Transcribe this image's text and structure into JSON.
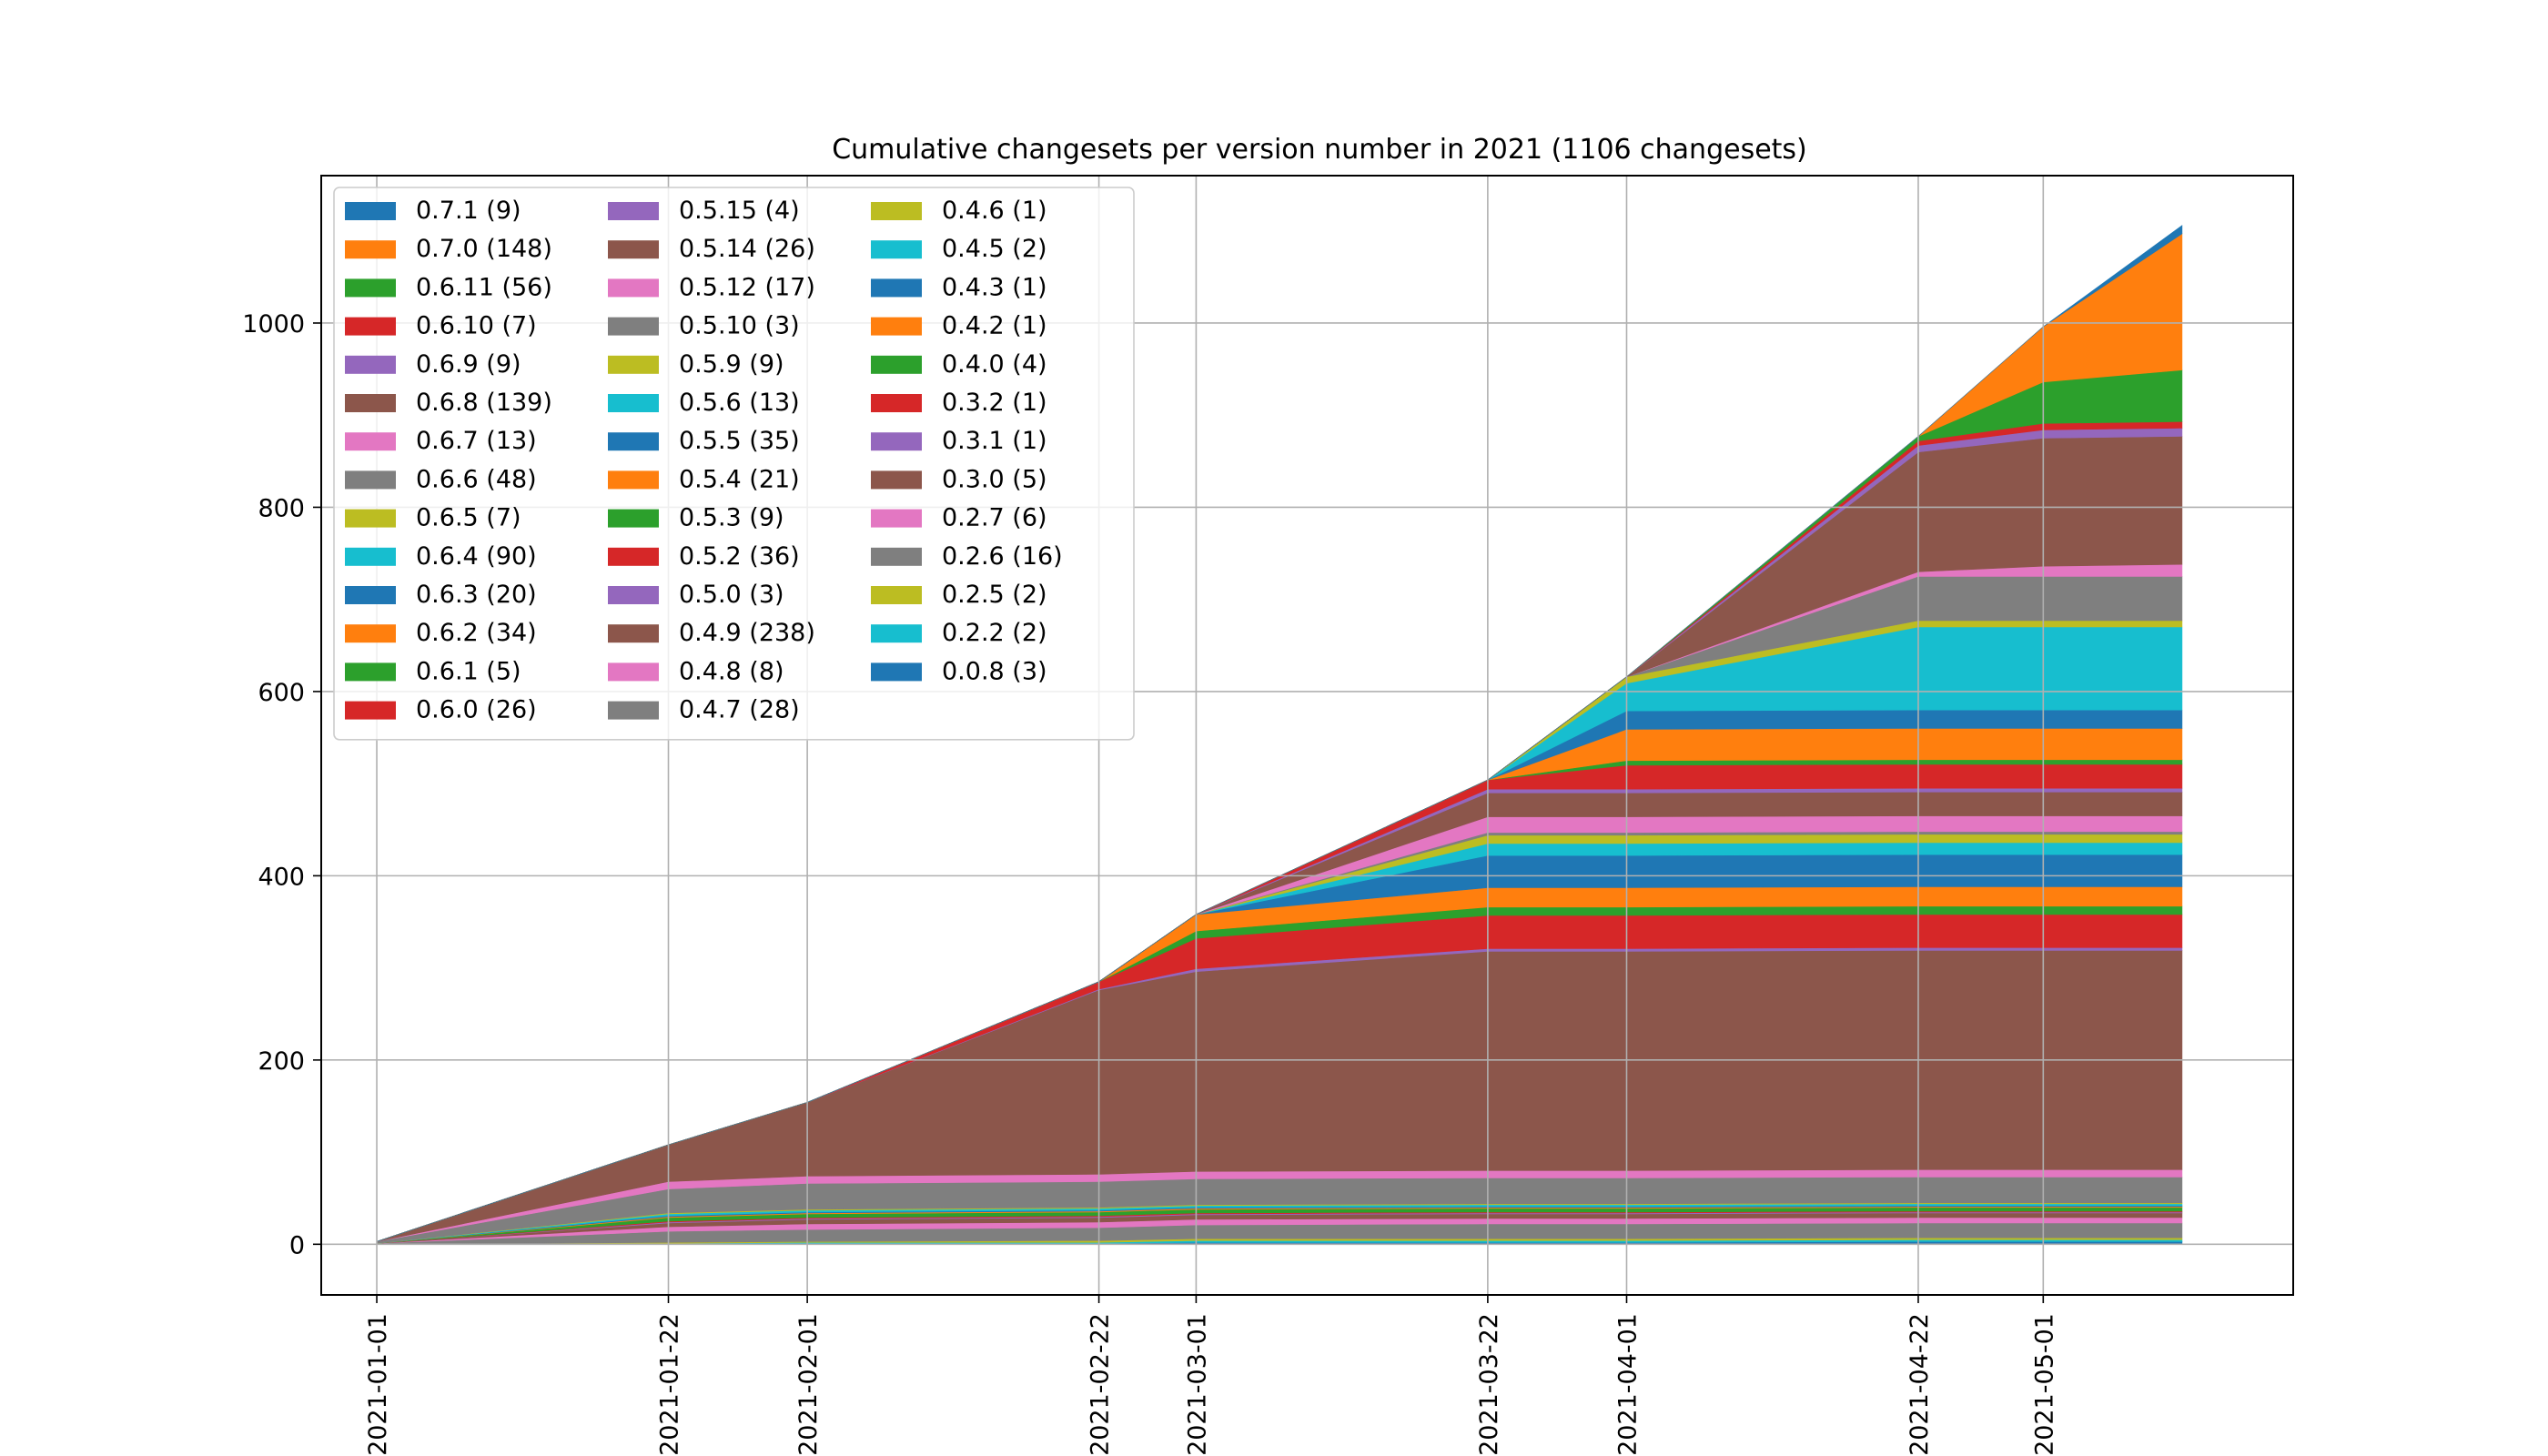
{
  "chart_data": {
    "type": "area",
    "stacked": true,
    "title": "Cumulative changesets per version number in 2021 (1106 changesets)",
    "xlabel": "",
    "ylabel": "",
    "xlim": [
      "2020-12-28",
      "2021-05-19"
    ],
    "ylim": [
      -55,
      1160
    ],
    "x_ticks": [
      "2021-01-01",
      "2021-01-22",
      "2021-02-01",
      "2021-02-22",
      "2021-03-01",
      "2021-03-22",
      "2021-04-01",
      "2021-04-22",
      "2021-05-01"
    ],
    "y_ticks": [
      0,
      200,
      400,
      600,
      800,
      1000
    ],
    "grid": true,
    "legend_position": "upper left",
    "legend_columns": 3,
    "x": [
      "2021-01-01",
      "2021-01-22",
      "2021-02-01",
      "2021-02-22",
      "2021-03-01",
      "2021-03-22",
      "2021-04-01",
      "2021-04-22",
      "2021-05-01",
      "2021-05-11"
    ],
    "series": [
      {
        "name": "0.0.8 (3)",
        "color": "#1f77b4",
        "values": [
          0,
          0,
          1,
          1,
          2,
          2,
          2,
          3,
          3,
          3
        ]
      },
      {
        "name": "0.2.2 (2)",
        "color": "#17becf",
        "values": [
          0,
          1,
          1,
          1,
          2,
          2,
          2,
          2,
          2,
          2
        ]
      },
      {
        "name": "0.2.5 (2)",
        "color": "#bcbd22",
        "values": [
          0,
          1,
          1,
          2,
          2,
          2,
          2,
          2,
          2,
          2
        ]
      },
      {
        "name": "0.2.6 (16)",
        "color": "#7f7f7f",
        "values": [
          1,
          12,
          13,
          14,
          15,
          16,
          16,
          16,
          16,
          16
        ]
      },
      {
        "name": "0.2.7 (6)",
        "color": "#e377c2",
        "values": [
          0,
          5,
          6,
          6,
          6,
          6,
          6,
          6,
          6,
          6
        ]
      },
      {
        "name": "0.3.0 (5)",
        "color": "#8c564b",
        "values": [
          0,
          4,
          5,
          5,
          5,
          5,
          5,
          5,
          5,
          5
        ]
      },
      {
        "name": "0.3.1 (1)",
        "color": "#9467bd",
        "values": [
          0,
          1,
          1,
          1,
          1,
          1,
          1,
          1,
          1,
          1
        ]
      },
      {
        "name": "0.3.2 (1)",
        "color": "#d62728",
        "values": [
          0,
          1,
          1,
          1,
          1,
          1,
          1,
          1,
          1,
          1
        ]
      },
      {
        "name": "0.4.0 (4)",
        "color": "#2ca02c",
        "values": [
          0,
          4,
          4,
          4,
          4,
          4,
          4,
          4,
          4,
          4
        ]
      },
      {
        "name": "0.4.2 (1)",
        "color": "#ff7f0e",
        "values": [
          0,
          1,
          1,
          1,
          1,
          1,
          1,
          1,
          1,
          1
        ]
      },
      {
        "name": "0.4.3 (1)",
        "color": "#1f77b4",
        "values": [
          0,
          1,
          1,
          1,
          1,
          1,
          1,
          1,
          1,
          1
        ]
      },
      {
        "name": "0.4.5 (2)",
        "color": "#17becf",
        "values": [
          0,
          2,
          2,
          2,
          2,
          2,
          2,
          2,
          2,
          2
        ]
      },
      {
        "name": "0.4.6 (1)",
        "color": "#bcbd22",
        "values": [
          0,
          1,
          1,
          1,
          1,
          1,
          1,
          1,
          1,
          1
        ]
      },
      {
        "name": "0.4.7 (28)",
        "color": "#7f7f7f",
        "values": [
          2,
          26,
          28,
          28,
          28,
          28,
          28,
          28,
          28,
          28
        ]
      },
      {
        "name": "0.4.8 (8)",
        "color": "#e377c2",
        "values": [
          0,
          8,
          8,
          8,
          8,
          8,
          8,
          8,
          8,
          8
        ]
      },
      {
        "name": "0.4.9 (238)",
        "color": "#8c564b",
        "values": [
          0,
          40,
          80,
          200,
          217,
          238,
          238,
          238,
          238,
          238
        ]
      },
      {
        "name": "0.5.0 (3)",
        "color": "#9467bd",
        "values": [
          0,
          0,
          0,
          1,
          3,
          3,
          3,
          3,
          3,
          3
        ]
      },
      {
        "name": "0.5.2 (36)",
        "color": "#d62728",
        "values": [
          0,
          0,
          0,
          8,
          33,
          36,
          36,
          36,
          36,
          36
        ]
      },
      {
        "name": "0.5.3 (9)",
        "color": "#2ca02c",
        "values": [
          0,
          0,
          0,
          0,
          8,
          9,
          9,
          9,
          9,
          9
        ]
      },
      {
        "name": "0.5.4 (21)",
        "color": "#ff7f0e",
        "values": [
          0,
          0,
          0,
          0,
          18,
          21,
          21,
          21,
          21,
          21
        ]
      },
      {
        "name": "0.5.5 (35)",
        "color": "#1f77b4",
        "values": [
          0,
          0,
          0,
          0,
          0,
          35,
          35,
          35,
          35,
          35
        ]
      },
      {
        "name": "0.5.6 (13)",
        "color": "#17becf",
        "values": [
          0,
          0,
          0,
          0,
          0,
          13,
          13,
          13,
          13,
          13
        ]
      },
      {
        "name": "0.5.9 (9)",
        "color": "#bcbd22",
        "values": [
          0,
          0,
          0,
          0,
          0,
          9,
          9,
          9,
          9,
          9
        ]
      },
      {
        "name": "0.5.10 (3)",
        "color": "#7f7f7f",
        "values": [
          0,
          0,
          0,
          0,
          0,
          3,
          3,
          3,
          3,
          3
        ]
      },
      {
        "name": "0.5.12 (17)",
        "color": "#e377c2",
        "values": [
          0,
          0,
          0,
          0,
          0,
          17,
          17,
          17,
          17,
          17
        ]
      },
      {
        "name": "0.5.14 (26)",
        "color": "#8c564b",
        "values": [
          0,
          0,
          0,
          0,
          0,
          26,
          26,
          26,
          26,
          26
        ]
      },
      {
        "name": "0.5.15 (4)",
        "color": "#9467bd",
        "values": [
          0,
          0,
          0,
          0,
          0,
          4,
          4,
          4,
          4,
          4
        ]
      },
      {
        "name": "0.6.0 (26)",
        "color": "#d62728",
        "values": [
          0,
          0,
          0,
          0,
          0,
          10,
          26,
          26,
          26,
          26
        ]
      },
      {
        "name": "0.6.1 (5)",
        "color": "#2ca02c",
        "values": [
          0,
          0,
          0,
          0,
          0,
          0,
          5,
          5,
          5,
          5
        ]
      },
      {
        "name": "0.6.2 (34)",
        "color": "#ff7f0e",
        "values": [
          0,
          0,
          0,
          0,
          0,
          0,
          34,
          34,
          34,
          34
        ]
      },
      {
        "name": "0.6.3 (20)",
        "color": "#1f77b4",
        "values": [
          0,
          0,
          0,
          0,
          0,
          0,
          20,
          20,
          20,
          20
        ]
      },
      {
        "name": "0.6.4 (90)",
        "color": "#17becf",
        "values": [
          0,
          0,
          0,
          0,
          0,
          0,
          30,
          90,
          90,
          90
        ]
      },
      {
        "name": "0.6.5 (7)",
        "color": "#bcbd22",
        "values": [
          0,
          0,
          0,
          0,
          0,
          0,
          7,
          7,
          7,
          7
        ]
      },
      {
        "name": "0.6.6 (48)",
        "color": "#7f7f7f",
        "values": [
          0,
          0,
          0,
          0,
          0,
          0,
          0,
          48,
          48,
          48
        ]
      },
      {
        "name": "0.6.7 (13)",
        "color": "#e377c2",
        "values": [
          0,
          0,
          0,
          0,
          0,
          0,
          0,
          5,
          11,
          13
        ]
      },
      {
        "name": "0.6.8 (139)",
        "color": "#8c564b",
        "values": [
          0,
          0,
          0,
          0,
          0,
          0,
          0,
          130,
          139,
          139
        ]
      },
      {
        "name": "0.6.9 (9)",
        "color": "#9467bd",
        "values": [
          0,
          0,
          0,
          0,
          0,
          0,
          0,
          7,
          9,
          9
        ]
      },
      {
        "name": "0.6.10 (7)",
        "color": "#d62728",
        "values": [
          0,
          0,
          0,
          0,
          0,
          0,
          0,
          5,
          7,
          7
        ]
      },
      {
        "name": "0.6.11 (56)",
        "color": "#2ca02c",
        "values": [
          0,
          0,
          0,
          0,
          0,
          0,
          0,
          5,
          45,
          56
        ]
      },
      {
        "name": "0.7.0 (148)",
        "color": "#ff7f0e",
        "values": [
          0,
          0,
          0,
          0,
          0,
          0,
          0,
          0,
          60,
          148
        ]
      },
      {
        "name": "0.7.1 (9)",
        "color": "#1f77b4",
        "values": [
          0,
          0,
          0,
          0,
          0,
          0,
          0,
          0,
          0,
          9
        ]
      }
    ]
  }
}
